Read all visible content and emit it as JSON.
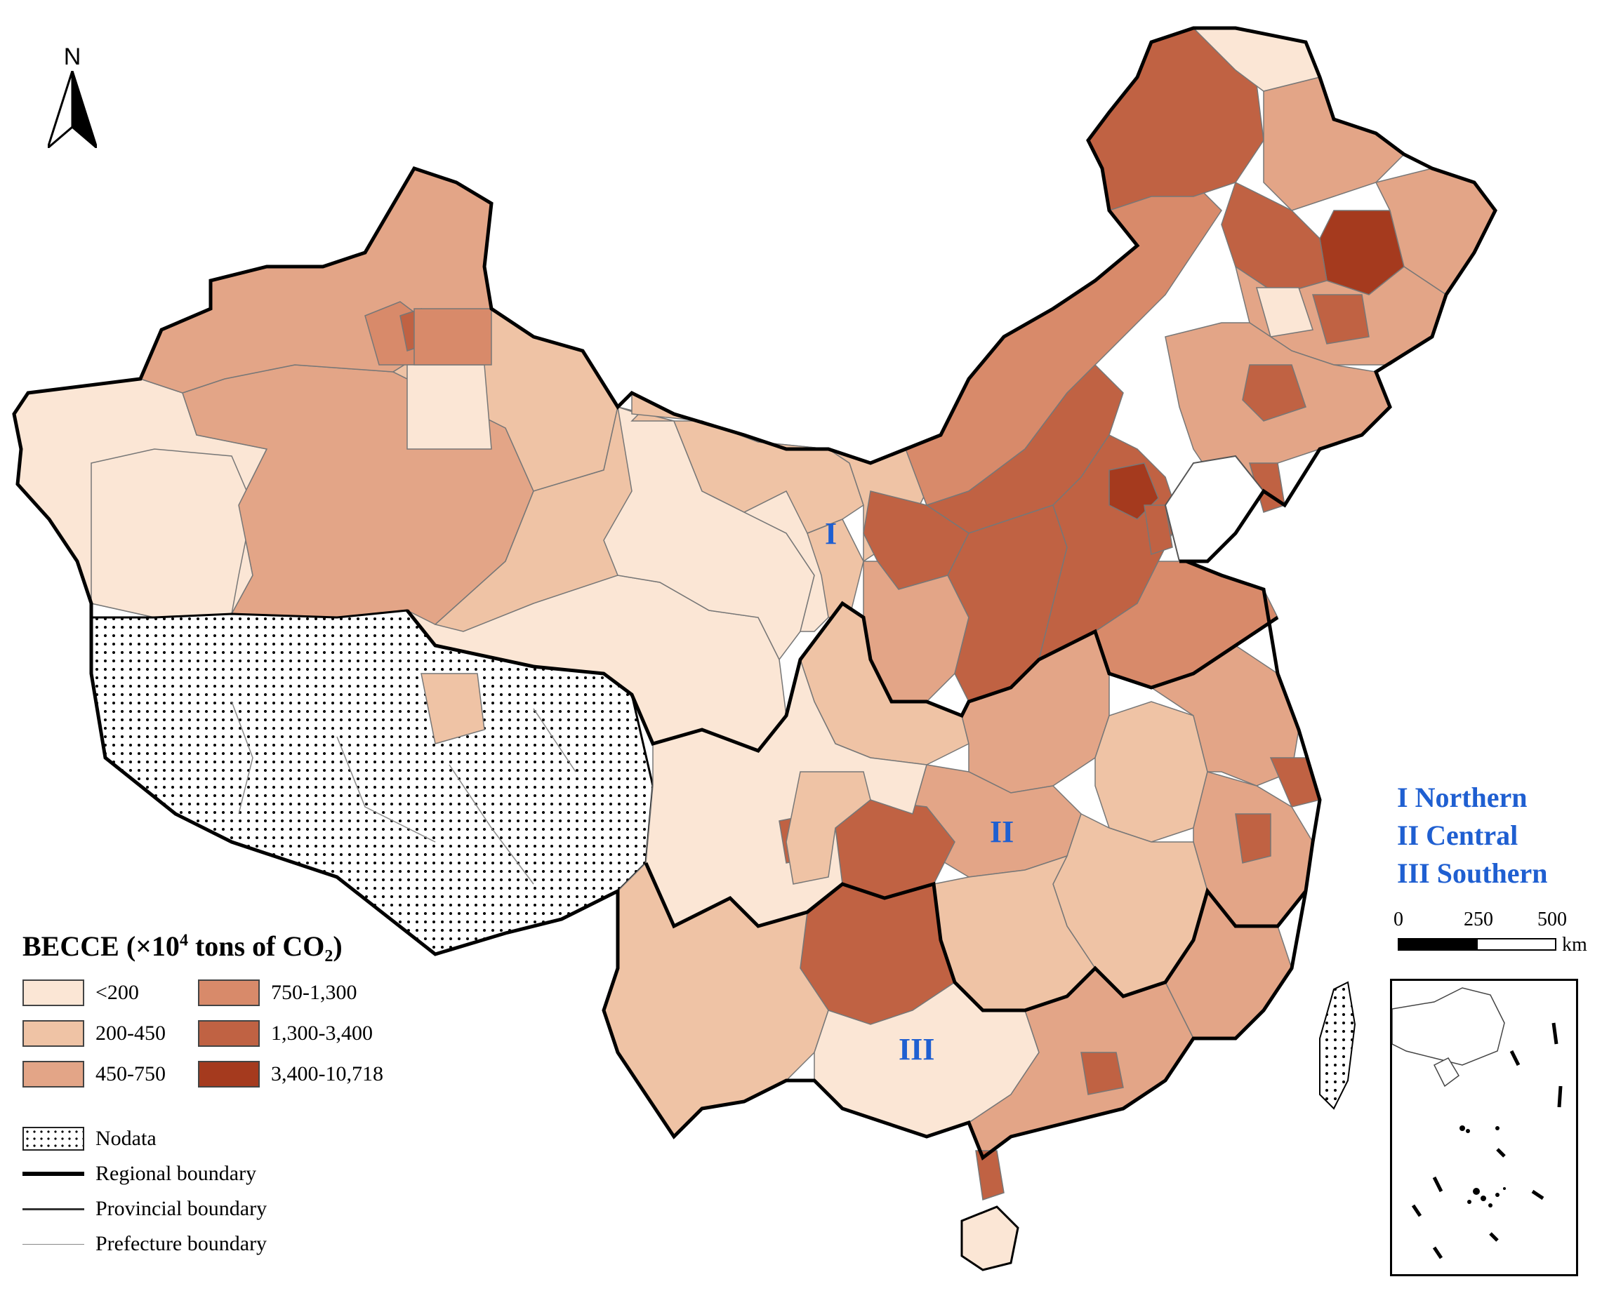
{
  "legend": {
    "title_main": "BECCE (×10",
    "title_exp": "4",
    "title_tail": " tons of CO₂)",
    "classes": [
      {
        "label": "<200",
        "color": "#fbe6d5"
      },
      {
        "label": "750-1,300",
        "color": "#d88a6a"
      },
      {
        "label": "200-450",
        "color": "#efc3a5"
      },
      {
        "label": "1,300-3,400",
        "color": "#c06243"
      },
      {
        "label": "450-750",
        "color": "#e3a587"
      },
      {
        "label": "3,400-10,718",
        "color": "#a53a1e"
      }
    ],
    "nodata_label": "Nodata",
    "regional_label": "Regional boundary",
    "provincial_label": "Provincial boundary",
    "prefecture_label": "Prefecture boundary"
  },
  "regions": {
    "label_1": "I",
    "label_2": "II",
    "label_3": "III",
    "key_1": "I Northern",
    "key_2": "II Central",
    "key_3": "III Southern"
  },
  "north_arrow": {
    "letter": "N"
  },
  "scale_bar": {
    "tick_0": "0",
    "tick_1": "250",
    "tick_2": "500",
    "unit": "km"
  },
  "colors": {
    "class_lt200": "#fbe6d5",
    "class_200_450": "#efc3a5",
    "class_450_750": "#e3a587",
    "class_750_1300": "#d88a6a",
    "class_1300_3400": "#c06243",
    "class_3400_10718": "#a53a1e",
    "region_label": "#1f5fd1"
  }
}
